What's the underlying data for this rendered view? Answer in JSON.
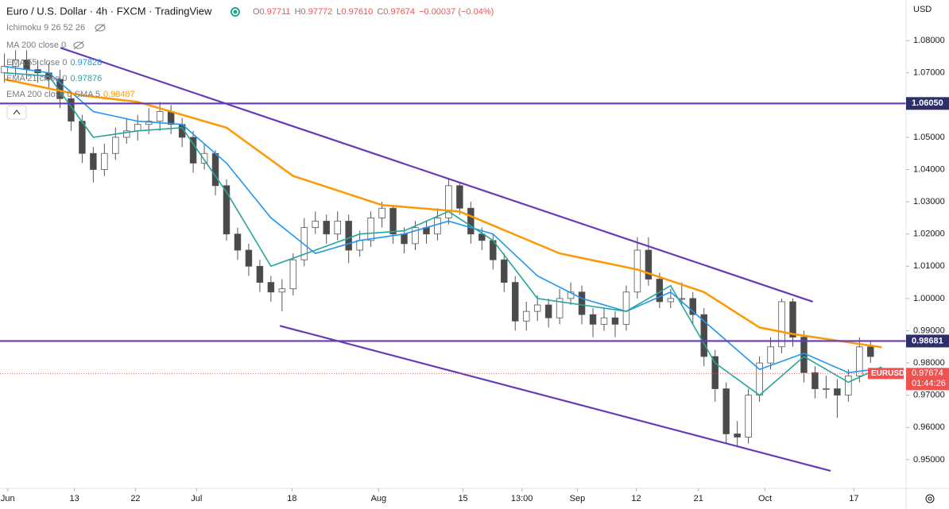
{
  "header": {
    "title": "Euro / U.S. Dollar · 4h · FXCM · TradingView",
    "ohlc": [
      {
        "label": "O",
        "value": "0.97711"
      },
      {
        "label": "H",
        "value": "0.97772"
      },
      {
        "label": "L",
        "value": "0.97610"
      },
      {
        "label": "C",
        "value": "0.97674"
      }
    ],
    "change": "−0.00037 (−0.04%)",
    "indicators": [
      "Ichimoku 9 26 52 26",
      "MA 200 close 0"
    ]
  },
  "chart_data": {
    "type": "candlestick",
    "currency": "USD",
    "symbol": "EURUSD",
    "countdown": "01:44:26",
    "last_price": 0.97674,
    "up_color": "#ffffff",
    "down_color": "#4a4a4a",
    "wick_color": "#555555",
    "xlim": [
      -0.4,
      81.2
    ],
    "ylim": [
      0.9411,
      1.0926
    ],
    "grid": false,
    "xticks": [
      {
        "value": 0.3,
        "label": "Jun"
      },
      {
        "value": 6.3,
        "label": "13"
      },
      {
        "value": 11.8,
        "label": "22"
      },
      {
        "value": 17.3,
        "label": "Jul"
      },
      {
        "value": 25.9,
        "label": "18"
      },
      {
        "value": 33.7,
        "label": "Aug"
      },
      {
        "value": 41.3,
        "label": "15"
      },
      {
        "value": 46.6,
        "label": "13:00"
      },
      {
        "value": 51.6,
        "label": "Sep"
      },
      {
        "value": 56.9,
        "label": "12"
      },
      {
        "value": 62.5,
        "label": "21"
      },
      {
        "value": 68.5,
        "label": "Oct"
      },
      {
        "value": 76.5,
        "label": "17"
      }
    ],
    "yticks": [
      {
        "value": 1.08,
        "label": "1.08000"
      },
      {
        "value": 1.07,
        "label": "1.07000"
      },
      {
        "value": 1.06,
        "label": "1.06000"
      },
      {
        "value": 1.05,
        "label": "1.05000"
      },
      {
        "value": 1.04,
        "label": "1.04000"
      },
      {
        "value": 1.03,
        "label": "1.03000"
      },
      {
        "value": 1.02,
        "label": "1.02000"
      },
      {
        "value": 1.01,
        "label": "1.01000"
      },
      {
        "value": 1.0,
        "label": "1.00000"
      },
      {
        "value": 0.99,
        "label": "0.99000"
      },
      {
        "value": 0.98,
        "label": "0.98000"
      },
      {
        "value": 0.97,
        "label": "0.97000"
      },
      {
        "value": 0.96,
        "label": "0.96000"
      },
      {
        "value": 0.95,
        "label": "0.95000"
      }
    ],
    "open": [
      1.07,
      1.072,
      1.074,
      1.071,
      1.07,
      1.068,
      1.062,
      1.055,
      1.045,
      1.04,
      1.045,
      1.05,
      1.052,
      1.054,
      1.055,
      1.058,
      1.054,
      1.05,
      1.042,
      1.045,
      1.035,
      1.02,
      1.015,
      1.01,
      1.005,
      1.002,
      1.003,
      1.012,
      1.022,
      1.024,
      1.02,
      1.024,
      1.015,
      1.018,
      1.025,
      1.028,
      1.02,
      1.017,
      1.022,
      1.02,
      1.025,
      1.035,
      1.028,
      1.02,
      1.018,
      1.012,
      1.005,
      0.993,
      0.996,
      0.998,
      0.994,
      1.0,
      1.002,
      0.995,
      0.992,
      0.994,
      0.992,
      1.002,
      1.015,
      1.006,
      0.999,
      1.0,
      1.0,
      0.995,
      0.982,
      0.972,
      0.958,
      0.957,
      0.97,
      0.98,
      0.985,
      0.999,
      0.988,
      0.977,
      0.972,
      0.972,
      0.97,
      0.976,
      0.985,
      0.97711
    ],
    "high": [
      1.076,
      1.077,
      1.077,
      1.074,
      1.073,
      1.071,
      1.064,
      1.057,
      1.047,
      1.048,
      1.053,
      1.056,
      1.057,
      1.059,
      1.061,
      1.06,
      1.056,
      1.052,
      1.048,
      1.046,
      1.037,
      1.022,
      1.017,
      1.012,
      1.007,
      1.006,
      1.014,
      1.025,
      1.027,
      1.026,
      1.027,
      1.026,
      1.021,
      1.027,
      1.03,
      1.029,
      1.022,
      1.024,
      1.024,
      1.028,
      1.037,
      1.036,
      1.03,
      1.022,
      1.02,
      1.014,
      1.007,
      0.999,
      1.001,
      1.0,
      1.003,
      1.005,
      1.004,
      0.997,
      0.997,
      0.996,
      1.004,
      1.019,
      1.019,
      1.008,
      1.003,
      1.005,
      1.002,
      0.997,
      0.984,
      0.974,
      0.962,
      0.972,
      0.982,
      0.988,
      1.0,
      1.0,
      0.99,
      0.979,
      0.976,
      0.975,
      0.978,
      0.988,
      0.987,
      0.97772
    ],
    "low": [
      1.067,
      1.069,
      1.068,
      1.067,
      1.065,
      1.059,
      1.052,
      1.042,
      1.036,
      1.038,
      1.043,
      1.048,
      1.049,
      1.051,
      1.052,
      1.051,
      1.047,
      1.039,
      1.04,
      1.032,
      1.018,
      1.012,
      1.007,
      1.002,
      0.999,
      0.996,
      1.001,
      1.01,
      1.02,
      1.017,
      1.018,
      1.011,
      1.013,
      1.016,
      1.022,
      1.017,
      1.014,
      1.015,
      1.017,
      1.018,
      1.023,
      1.026,
      1.017,
      1.015,
      1.009,
      1.002,
      0.99,
      0.99,
      0.993,
      0.991,
      0.992,
      0.998,
      0.992,
      0.988,
      0.99,
      0.988,
      0.99,
      1.0,
      1.004,
      0.997,
      0.997,
      0.998,
      0.992,
      0.979,
      0.968,
      0.955,
      0.954,
      0.955,
      0.968,
      0.978,
      0.983,
      0.985,
      0.974,
      0.969,
      0.969,
      0.963,
      0.968,
      0.974,
      0.98,
      0.9761
    ],
    "close": [
      1.072,
      1.074,
      1.071,
      1.07,
      1.068,
      1.062,
      1.055,
      1.045,
      1.04,
      1.045,
      1.05,
      1.052,
      1.054,
      1.055,
      1.058,
      1.054,
      1.05,
      1.042,
      1.045,
      1.035,
      1.02,
      1.015,
      1.01,
      1.005,
      1.002,
      1.003,
      1.012,
      1.022,
      1.024,
      1.02,
      1.024,
      1.015,
      1.018,
      1.025,
      1.028,
      1.02,
      1.017,
      1.022,
      1.02,
      1.025,
      1.035,
      1.028,
      1.02,
      1.018,
      1.012,
      1.005,
      0.993,
      0.996,
      0.998,
      0.994,
      1.0,
      1.002,
      0.995,
      0.992,
      0.994,
      0.992,
      1.002,
      1.015,
      1.006,
      0.999,
      1.0,
      1.0,
      0.995,
      0.982,
      0.972,
      0.958,
      0.957,
      0.97,
      0.98,
      0.985,
      0.999,
      0.988,
      0.977,
      0.972,
      0.972,
      0.97,
      0.976,
      0.985,
      0.982,
      0.97674
    ],
    "series": [
      {
        "name": "EMA 55 close 0",
        "legend_value": 0.97828,
        "color": "#2196f3",
        "x": [
          0,
          4,
          8,
          12,
          16,
          20,
          24,
          28,
          32,
          36,
          40,
          44,
          48,
          52,
          56,
          60,
          64,
          68,
          72,
          76,
          79
        ],
        "values": [
          1.072,
          1.07,
          1.058,
          1.055,
          1.054,
          1.042,
          1.025,
          1.014,
          1.018,
          1.02,
          1.024,
          1.02,
          1.007,
          1.0,
          0.996,
          1.002,
          0.99,
          0.978,
          0.983,
          0.977,
          0.97828
        ]
      },
      {
        "name": "EMA 21 close 0",
        "legend_value": 0.97876,
        "color": "#26a69a",
        "x": [
          0,
          4,
          8,
          12,
          16,
          20,
          24,
          28,
          32,
          36,
          40,
          44,
          48,
          52,
          56,
          60,
          64,
          68,
          72,
          76,
          79
        ],
        "values": [
          1.07,
          1.069,
          1.05,
          1.052,
          1.053,
          1.033,
          1.01,
          1.015,
          1.02,
          1.021,
          1.027,
          1.018,
          1.0,
          0.998,
          0.996,
          1.004,
          0.98,
          0.97,
          0.982,
          0.974,
          0.97876
        ]
      },
      {
        "name": "EMA 200 close 0 SMA 5",
        "legend_value": 0.98487,
        "color": "#ff9800",
        "x": [
          0,
          7,
          12,
          20,
          26,
          34,
          41,
          50,
          57,
          63,
          68,
          71,
          79
        ],
        "values": [
          1.068,
          1.063,
          1.061,
          1.053,
          1.038,
          1.029,
          1.027,
          1.014,
          1.009,
          1.002,
          0.991,
          0.989,
          0.98487
        ]
      }
    ],
    "trendlines": [
      {
        "color": "#673ab7",
        "x": [
          5.04,
          72.8
        ],
        "values": [
          1.07778,
          0.999
        ]
      },
      {
        "color": "#673ab7",
        "x": [
          24.8,
          74.4
        ],
        "values": [
          0.99153,
          0.94653
        ]
      }
    ],
    "levels": [
      {
        "value": 1.0605,
        "label": "1.06050"
      },
      {
        "value": 0.98681,
        "label": "0.98681"
      }
    ],
    "level_color": "#673ab7",
    "last_color": "#ef5350"
  }
}
